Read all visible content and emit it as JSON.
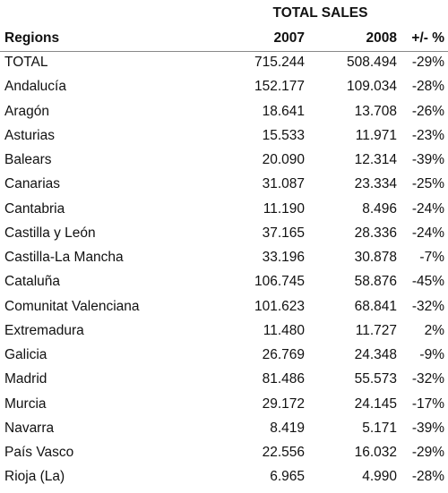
{
  "table": {
    "group_header": "TOTAL SALES",
    "columns": [
      "Regions",
      "2007",
      "2008",
      "+/- %"
    ],
    "rows": [
      [
        "TOTAL",
        "715.244",
        "508.494",
        "-29%"
      ],
      [
        "Andalucía",
        "152.177",
        "109.034",
        "-28%"
      ],
      [
        "Aragón",
        "18.641",
        "13.708",
        "-26%"
      ],
      [
        "Asturias",
        "15.533",
        "11.971",
        "-23%"
      ],
      [
        "Balears",
        "20.090",
        "12.314",
        "-39%"
      ],
      [
        "Canarias",
        "31.087",
        "23.334",
        "-25%"
      ],
      [
        "Cantabria",
        "11.190",
        "8.496",
        "-24%"
      ],
      [
        "Castilla y León",
        "37.165",
        "28.336",
        "-24%"
      ],
      [
        "Castilla-La Mancha",
        "33.196",
        "30.878",
        "-7%"
      ],
      [
        "Cataluña",
        "106.745",
        "58.876",
        "-45%"
      ],
      [
        "Comunitat Valenciana",
        "101.623",
        "68.841",
        "-32%"
      ],
      [
        "Extremadura",
        "11.480",
        "11.727",
        "2%"
      ],
      [
        "Galicia",
        "26.769",
        "24.348",
        "-9%"
      ],
      [
        "Madrid",
        "81.486",
        "55.573",
        "-32%"
      ],
      [
        "Murcia",
        "29.172",
        "24.145",
        "-17%"
      ],
      [
        "Navarra",
        "8.419",
        "5.171",
        "-39%"
      ],
      [
        "País Vasco",
        "22.556",
        "16.032",
        "-29%"
      ],
      [
        "Rioja (La)",
        "6.965",
        "4.990",
        "-28%"
      ]
    ]
  }
}
